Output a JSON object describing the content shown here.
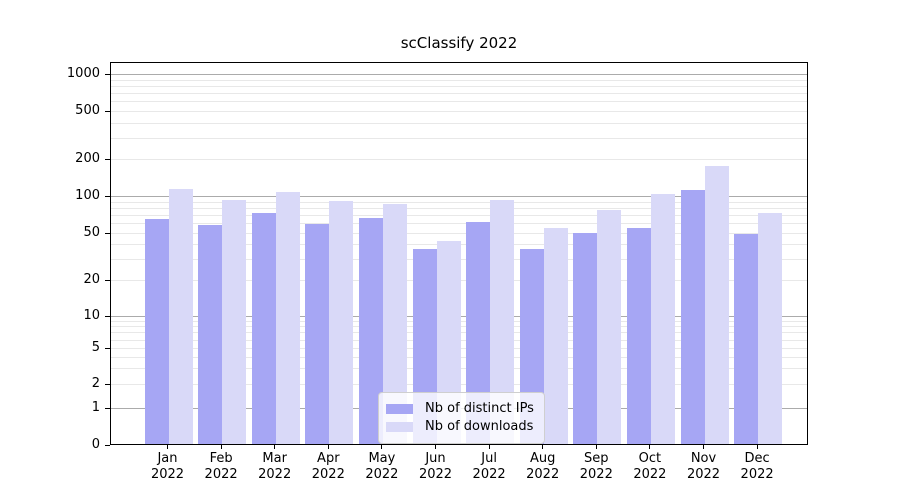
{
  "title": "scClassify 2022",
  "chart_data": {
    "type": "bar",
    "title": "scClassify 2022",
    "categories": [
      "Jan",
      "Feb",
      "Mar",
      "Apr",
      "May",
      "Jun",
      "Jul",
      "Aug",
      "Sep",
      "Oct",
      "Nov",
      "Dec"
    ],
    "year_label": "2022",
    "series": [
      {
        "name": "Nb of distinct IPs",
        "color": "#a6a6f4",
        "values": [
          66,
          59,
          74,
          60,
          67,
          37,
          63,
          37,
          51,
          56,
          114,
          50
        ]
      },
      {
        "name": "Nb of downloads",
        "color": "#d9d9f8",
        "values": [
          117,
          95,
          110,
          93,
          88,
          44,
          95,
          56,
          78,
          105,
          179,
          74
        ]
      }
    ],
    "yscale": "symlog",
    "yticks": [
      0,
      1,
      2,
      5,
      10,
      20,
      50,
      100,
      200,
      500,
      1000
    ],
    "ylim": [
      0,
      1260
    ],
    "grid": {
      "major": true,
      "minor": true
    },
    "legend_position": "lower-center",
    "axis_color": "#000000",
    "major_grid_color": "#ababab",
    "minor_grid_color": "#e8e8e8"
  }
}
